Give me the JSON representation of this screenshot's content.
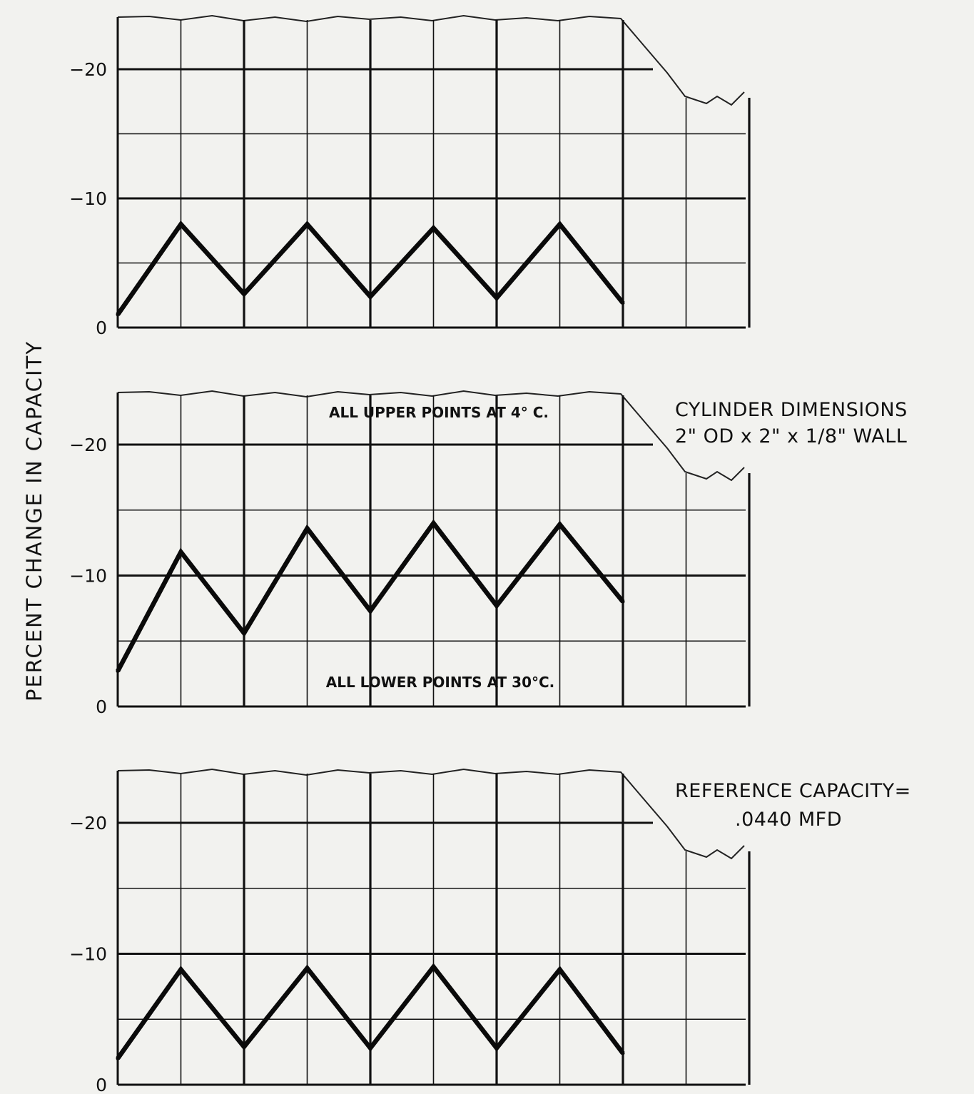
{
  "chart_data": {
    "type": "line",
    "ylabel": "PERCENT CHANGE IN CAPACITY",
    "annotations": {
      "upper": "ALL UPPER POINTS AT 4° C.",
      "lower": "ALL LOWER POINTS AT 30°C.",
      "cylinder_line1": "CYLINDER DIMENSIONS",
      "cylinder_line2": "2\" OD x 2\" x 1/8\" WALL",
      "reference_line1": "REFERENCE CAPACITY=",
      "reference_line2": ".0440 MFD"
    },
    "grid": true,
    "panels": [
      {
        "ylim": [
          0,
          20
        ],
        "yticks": [
          0,
          10,
          20
        ],
        "ytick_labels": [
          "0",
          "−10",
          "−20"
        ],
        "xlim": [
          0,
          10
        ],
        "series": [
          {
            "x": [
              0,
              1,
              2,
              3,
              4,
              5,
              6,
              7,
              8
            ],
            "y": [
              1,
              8,
              2.6,
              8,
              2.4,
              7.7,
              2.3,
              8,
              1.9
            ]
          }
        ]
      },
      {
        "ylim": [
          0,
          20
        ],
        "yticks": [
          0,
          10,
          20
        ],
        "ytick_labels": [
          "0",
          "−10",
          "−20"
        ],
        "xlim": [
          0,
          10
        ],
        "series": [
          {
            "x": [
              0,
              1,
              2,
              3,
              4,
              5,
              6,
              7,
              8
            ],
            "y": [
              2.7,
              11.8,
              5.6,
              13.6,
              7.3,
              14,
              7.7,
              13.9,
              8
            ]
          }
        ]
      },
      {
        "ylim": [
          0,
          20
        ],
        "yticks": [
          0,
          10,
          20
        ],
        "ytick_labels": [
          "0",
          "−10",
          "−20"
        ],
        "xlim": [
          0,
          10
        ],
        "series": [
          {
            "x": [
              0,
              1,
              2,
              3,
              4,
              5,
              6,
              7,
              8
            ],
            "y": [
              2,
              8.8,
              2.9,
              8.9,
              2.8,
              9,
              2.8,
              8.8,
              2.4
            ]
          }
        ]
      }
    ]
  }
}
